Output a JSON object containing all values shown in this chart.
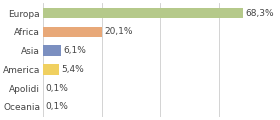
{
  "categories": [
    "Europa",
    "Africa",
    "Asia",
    "America",
    "Apolidi",
    "Oceania"
  ],
  "values": [
    68.3,
    20.1,
    6.1,
    5.4,
    0.1,
    0.1
  ],
  "labels": [
    "68,3%",
    "20,1%",
    "6,1%",
    "5,4%",
    "0,1%",
    "0,1%"
  ],
  "colors": [
    "#b5c98a",
    "#e8a878",
    "#7b8fc0",
    "#f0d060",
    "#f0f0f0",
    "#f0f0f0"
  ],
  "xlim": [
    0,
    80
  ],
  "background_color": "#ffffff",
  "bar_height": 0.55,
  "grid_ticks": [
    0,
    20,
    40,
    60,
    80
  ],
  "grid_color": "#cccccc",
  "label_fontsize": 6.5,
  "ytick_fontsize": 6.5,
  "text_color": "#444444"
}
